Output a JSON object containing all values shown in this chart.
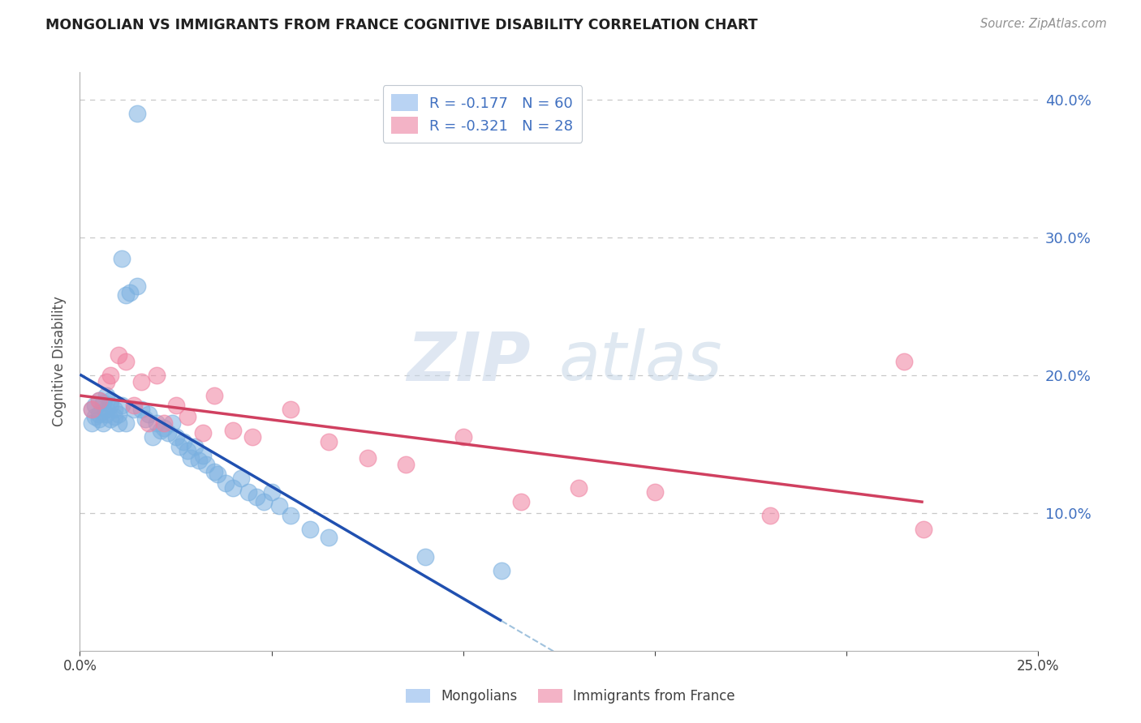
{
  "title": "MONGOLIAN VS IMMIGRANTS FROM FRANCE COGNITIVE DISABILITY CORRELATION CHART",
  "source": "Source: ZipAtlas.com",
  "ylabel": "Cognitive Disability",
  "watermark": "ZIPatlas",
  "right_ytick_labels": [
    "40.0%",
    "30.0%",
    "20.0%",
    "10.0%"
  ],
  "right_ytick_values": [
    0.4,
    0.3,
    0.2,
    0.1
  ],
  "xlim": [
    0.0,
    0.25
  ],
  "ylim": [
    0.0,
    0.42
  ],
  "xtick_labels": [
    "0.0%",
    "",
    "",
    "",
    "",
    "25.0%"
  ],
  "xtick_values": [
    0.0,
    0.05,
    0.1,
    0.15,
    0.2,
    0.25
  ],
  "legend_label_1": "R = -0.177   N = 60",
  "legend_label_2": "R = -0.321   N = 28",
  "legend_color_1": "#a8c8f0",
  "legend_color_2": "#f0a0b8",
  "mongolians_x": [
    0.003,
    0.003,
    0.004,
    0.004,
    0.005,
    0.005,
    0.005,
    0.006,
    0.006,
    0.007,
    0.007,
    0.007,
    0.008,
    0.008,
    0.008,
    0.009,
    0.009,
    0.01,
    0.01,
    0.011,
    0.011,
    0.012,
    0.012,
    0.013,
    0.014,
    0.015,
    0.015,
    0.016,
    0.017,
    0.018,
    0.019,
    0.02,
    0.021,
    0.022,
    0.023,
    0.024,
    0.025,
    0.026,
    0.027,
    0.028,
    0.029,
    0.03,
    0.031,
    0.032,
    0.033,
    0.035,
    0.036,
    0.038,
    0.04,
    0.042,
    0.044,
    0.046,
    0.048,
    0.05,
    0.052,
    0.055,
    0.06,
    0.065,
    0.09,
    0.11
  ],
  "mongolians_y": [
    0.175,
    0.165,
    0.178,
    0.17,
    0.182,
    0.168,
    0.172,
    0.18,
    0.165,
    0.175,
    0.185,
    0.172,
    0.178,
    0.168,
    0.182,
    0.17,
    0.175,
    0.172,
    0.165,
    0.178,
    0.285,
    0.165,
    0.258,
    0.26,
    0.175,
    0.265,
    0.39,
    0.175,
    0.168,
    0.172,
    0.155,
    0.165,
    0.16,
    0.162,
    0.158,
    0.165,
    0.155,
    0.148,
    0.152,
    0.145,
    0.14,
    0.148,
    0.138,
    0.142,
    0.135,
    0.13,
    0.128,
    0.122,
    0.118,
    0.125,
    0.115,
    0.112,
    0.108,
    0.115,
    0.105,
    0.098,
    0.088,
    0.082,
    0.068,
    0.058
  ],
  "france_x": [
    0.003,
    0.005,
    0.007,
    0.008,
    0.01,
    0.012,
    0.014,
    0.016,
    0.018,
    0.02,
    0.022,
    0.025,
    0.028,
    0.032,
    0.035,
    0.04,
    0.045,
    0.055,
    0.065,
    0.075,
    0.085,
    0.1,
    0.115,
    0.13,
    0.15,
    0.18,
    0.215,
    0.22
  ],
  "france_y": [
    0.175,
    0.182,
    0.195,
    0.2,
    0.215,
    0.21,
    0.178,
    0.195,
    0.165,
    0.2,
    0.165,
    0.178,
    0.17,
    0.158,
    0.185,
    0.16,
    0.155,
    0.175,
    0.152,
    0.14,
    0.135,
    0.155,
    0.108,
    0.118,
    0.115,
    0.098,
    0.21,
    0.088
  ],
  "mongolian_color": "#7ab0e0",
  "france_color": "#f080a0",
  "mongolian_line_color": "#2050b0",
  "france_line_color": "#d04060",
  "dashed_line_color": "#90b8d8",
  "title_color": "#202020",
  "axis_label_color": "#505050",
  "right_axis_color": "#4070c0",
  "grid_color": "#c8c8c8",
  "background_color": "#ffffff",
  "bottom_legend_mongolians": "Mongolians",
  "bottom_legend_france": "Immigrants from France"
}
